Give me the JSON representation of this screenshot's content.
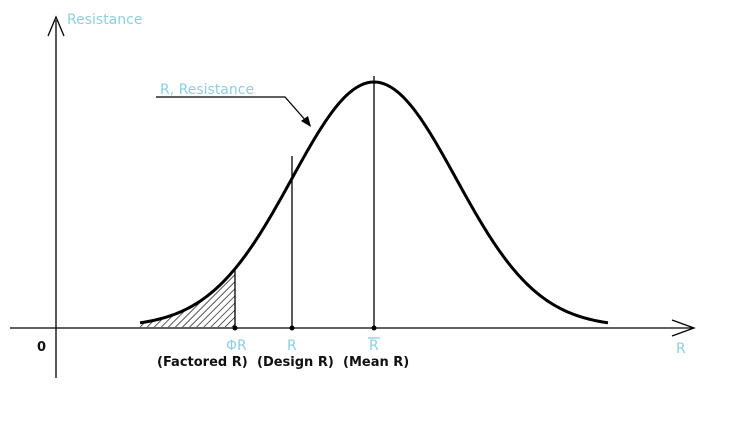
{
  "axes": {
    "y_label": "Resistance",
    "x_label": "R",
    "origin_label": "0"
  },
  "curve": {
    "label": "R, Resistance"
  },
  "markers": [
    {
      "symbol": "ΦR",
      "caption": "(Factored R)"
    },
    {
      "symbol": "R",
      "caption": "(Design R)"
    },
    {
      "symbol": "R",
      "caption": "(Mean R)",
      "overline": true
    }
  ],
  "colors": {
    "label_blue": "#8ecfe3",
    "ink": "#000000"
  }
}
